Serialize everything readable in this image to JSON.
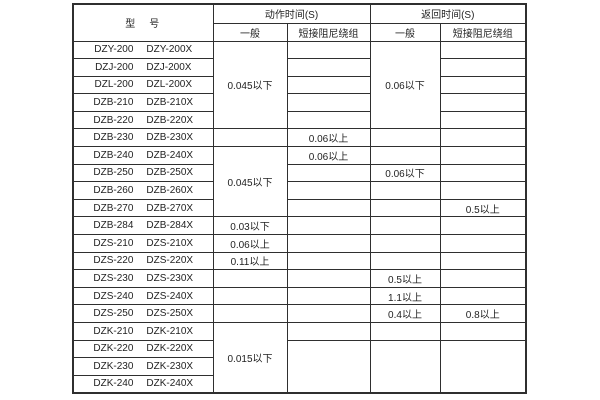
{
  "table": {
    "header": {
      "model": "型　号",
      "action_time": "动作时间(S)",
      "return_time": "返回时间(S)",
      "general_action": "一般",
      "damping_action": "短接阻尼绕组",
      "general_return": "一般",
      "damping_return": "短接阻尼绕组"
    },
    "rows": [
      {
        "m1": "DZY-200",
        "m2": "DZY-200X",
        "c": [
          {
            "t": "0.045以下",
            "rs": 5
          },
          {
            "t": ""
          },
          {
            "t": "0.06以下",
            "rs": 5
          },
          {
            "t": ""
          }
        ]
      },
      {
        "m1": "DZJ-200",
        "m2": "DZJ-200X",
        "c": [
          null,
          {
            "t": ""
          },
          null,
          {
            "t": ""
          }
        ]
      },
      {
        "m1": "DZL-200",
        "m2": "DZL-200X",
        "c": [
          null,
          {
            "t": ""
          },
          null,
          {
            "t": ""
          }
        ]
      },
      {
        "m1": "DZB-210",
        "m2": "DZB-210X",
        "c": [
          null,
          {
            "t": ""
          },
          null,
          {
            "t": ""
          }
        ]
      },
      {
        "m1": "DZB-220",
        "m2": "DZB-220X",
        "c": [
          null,
          {
            "t": ""
          },
          null,
          {
            "t": ""
          }
        ]
      },
      {
        "m1": "DZB-230",
        "m2": "DZB-230X",
        "c": [
          {
            "t": ""
          },
          {
            "t": "0.06以上"
          },
          {
            "t": ""
          },
          {
            "t": ""
          }
        ]
      },
      {
        "m1": "DZB-240",
        "m2": "DZB-240X",
        "c": [
          {
            "t": "0.045以下",
            "rs": 4
          },
          {
            "t": "0.06以上"
          },
          {
            "t": ""
          },
          {
            "t": ""
          }
        ]
      },
      {
        "m1": "DZB-250",
        "m2": "DZB-250X",
        "c": [
          null,
          {
            "t": ""
          },
          {
            "t": "0.06以下"
          },
          {
            "t": ""
          }
        ]
      },
      {
        "m1": "DZB-260",
        "m2": "DZB-260X",
        "c": [
          null,
          {
            "t": ""
          },
          {
            "t": ""
          },
          {
            "t": ""
          }
        ]
      },
      {
        "m1": "DZB-270",
        "m2": "DZB-270X",
        "c": [
          null,
          {
            "t": ""
          },
          {
            "t": ""
          },
          {
            "t": "0.5以上"
          }
        ]
      },
      {
        "m1": "DZB-284",
        "m2": "DZB-284X",
        "c": [
          {
            "t": "0.03以下"
          },
          {
            "t": ""
          },
          {
            "t": ""
          },
          {
            "t": ""
          }
        ]
      },
      {
        "m1": "DZS-210",
        "m2": "DZS-210X",
        "c": [
          {
            "t": "0.06以上"
          },
          {
            "t": ""
          },
          {
            "t": ""
          },
          {
            "t": ""
          }
        ]
      },
      {
        "m1": "DZS-220",
        "m2": "DZS-220X",
        "c": [
          {
            "t": "0.11以上"
          },
          {
            "t": ""
          },
          {
            "t": ""
          },
          {
            "t": ""
          }
        ]
      },
      {
        "m1": "DZS-230",
        "m2": "DZS-230X",
        "c": [
          {
            "t": ""
          },
          {
            "t": ""
          },
          {
            "t": "0.5以上"
          },
          {
            "t": ""
          }
        ]
      },
      {
        "m1": "DZS-240",
        "m2": "DZS-240X",
        "c": [
          {
            "t": ""
          },
          {
            "t": ""
          },
          {
            "t": "1.1以上"
          },
          {
            "t": ""
          }
        ]
      },
      {
        "m1": "DZS-250",
        "m2": "DZS-250X",
        "c": [
          {
            "t": ""
          },
          {
            "t": ""
          },
          {
            "t": "0.4以上"
          },
          {
            "t": "0.8以上"
          }
        ]
      },
      {
        "m1": "DZK-210",
        "m2": "DZK-210X",
        "c": [
          {
            "t": "0.015以下",
            "rs": 4
          },
          {
            "t": ""
          },
          {
            "t": ""
          },
          {
            "t": ""
          }
        ]
      },
      {
        "m1": "DZK-220",
        "m2": "DZK-220X",
        "c": [
          null,
          {
            "t": "",
            "rs": 3
          },
          {
            "t": "",
            "rs": 3
          },
          {
            "t": "",
            "rs": 3
          }
        ]
      },
      {
        "m1": "DZK-230",
        "m2": "DZK-230X",
        "c": [
          null,
          null,
          null,
          null
        ]
      },
      {
        "m1": "DZK-240",
        "m2": "DZK-240X",
        "c": [
          null,
          null,
          null,
          null
        ]
      }
    ]
  }
}
